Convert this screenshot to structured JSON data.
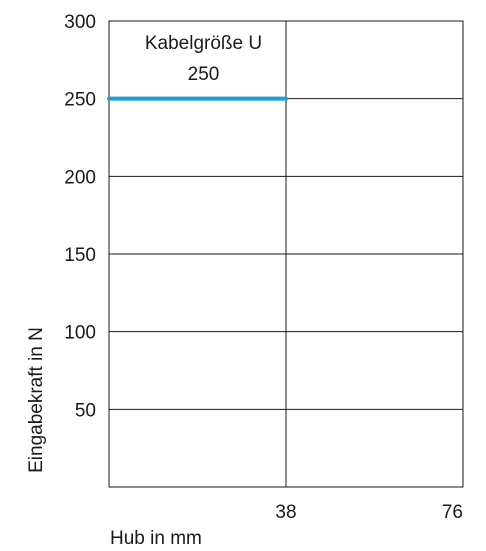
{
  "chart_data": {
    "type": "line",
    "title": "",
    "xlabel": "Hub in mm",
    "ylabel": "Eingabekraft in N",
    "xlim": [
      0,
      76
    ],
    "ylim": [
      0,
      300
    ],
    "x_ticks": [
      38,
      76
    ],
    "x_tick_labels": [
      "38",
      "76"
    ],
    "y_ticks": [
      50,
      100,
      150,
      200,
      250,
      300
    ],
    "y_tick_labels": [
      "50",
      "100",
      "150",
      "200",
      "250",
      "300"
    ],
    "grid": true,
    "legend": "none",
    "series": [
      {
        "color": "#1aa0dc",
        "x": [
          0,
          38
        ],
        "y": [
          250,
          250
        ]
      }
    ],
    "annotations": [
      {
        "text": "Kabelgröße U",
        "x": 19,
        "y": 282
      },
      {
        "text": "250",
        "x": 19,
        "y": 262
      }
    ]
  }
}
